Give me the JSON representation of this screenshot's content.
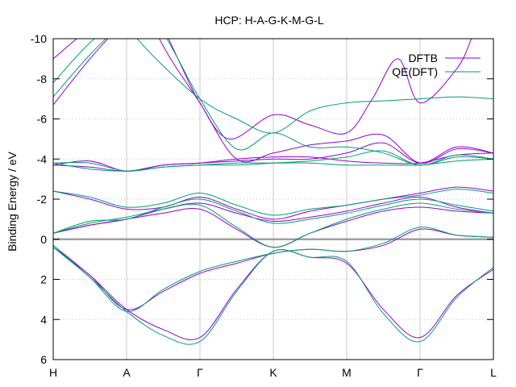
{
  "chart_data": {
    "type": "line",
    "title": "HCP: H-A-G-K-M-G-L",
    "xlabel": "",
    "ylabel": "Binding Energy / eV",
    "ylim": [
      6,
      -10
    ],
    "yticks": [
      "-10",
      "-8",
      "-6",
      "-4",
      "-2",
      "0",
      "2",
      "4",
      "6"
    ],
    "x_ticks": [
      "H",
      "A",
      "Γ",
      "K",
      "M",
      "Γ",
      "L"
    ],
    "grid": "dotted horizontal + vertical at high-symmetry points",
    "fermi_level": 0,
    "legend_position": "top-right",
    "colors": {
      "DFTB": "#9400d3",
      "QE(DFT)": "#009e73",
      "fermi": "#a0a0a0",
      "grid": "#c8c8c8"
    },
    "series": [
      {
        "name": "DFTB",
        "bands": [
          [
            [
              0,
              0.4
            ],
            [
              0.5,
              1.8
            ],
            [
              1,
              3.5
            ],
            [
              1.5,
              4.5
            ],
            [
              2,
              4.9
            ],
            [
              2.5,
              2.5
            ],
            [
              3,
              0.6
            ],
            [
              3.5,
              0.9
            ],
            [
              4,
              1.2
            ],
            [
              4.5,
              3.5
            ],
            [
              5,
              4.9
            ],
            [
              5.5,
              2.8
            ],
            [
              6,
              1.5
            ]
          ],
          [
            [
              0,
              0.3
            ],
            [
              0.5,
              1.8
            ],
            [
              1,
              3.5
            ],
            [
              1.5,
              2.6
            ],
            [
              2,
              1.7
            ],
            [
              2.5,
              1.2
            ],
            [
              3,
              0.7
            ],
            [
              3.5,
              0.5
            ],
            [
              4,
              0.6
            ],
            [
              4.5,
              0.3
            ],
            [
              5,
              -0.5
            ],
            [
              5.5,
              -0.2
            ],
            [
              6,
              -0.1
            ]
          ],
          [
            [
              0,
              -0.3
            ],
            [
              0.5,
              -0.7
            ],
            [
              1,
              -1.0
            ],
            [
              1.5,
              -1.3
            ],
            [
              2,
              -1.5
            ],
            [
              2.5,
              -0.5
            ],
            [
              3,
              0.4
            ],
            [
              3.5,
              -0.3
            ],
            [
              4,
              -0.9
            ],
            [
              4.5,
              -1.4
            ],
            [
              5,
              -1.6
            ],
            [
              5.5,
              -1.4
            ],
            [
              6,
              -1.3
            ]
          ],
          [
            [
              0,
              -0.3
            ],
            [
              0.5,
              -0.7
            ],
            [
              1,
              -1.0
            ],
            [
              1.5,
              -1.5
            ],
            [
              2,
              -1.8
            ],
            [
              2.5,
              -1.3
            ],
            [
              3,
              -0.9
            ],
            [
              3.5,
              -1.1
            ],
            [
              4,
              -1.4
            ],
            [
              4.5,
              -1.8
            ],
            [
              5,
              -2.1
            ],
            [
              5.5,
              -1.6
            ],
            [
              6,
              -1.3
            ]
          ],
          [
            [
              0,
              -2.4
            ],
            [
              0.5,
              -2.0
            ],
            [
              1,
              -1.5
            ],
            [
              1.5,
              -1.6
            ],
            [
              2,
              -2.1
            ],
            [
              2.5,
              -1.5
            ],
            [
              3,
              -1.0
            ],
            [
              3.5,
              -1.4
            ],
            [
              4,
              -1.7
            ],
            [
              4.5,
              -2.0
            ],
            [
              5,
              -2.3
            ],
            [
              5.5,
              -2.6
            ],
            [
              6,
              -2.4
            ]
          ],
          [
            [
              0,
              -3.7
            ],
            [
              0.5,
              -3.6
            ],
            [
              1,
              -3.4
            ],
            [
              1.5,
              -3.7
            ],
            [
              2,
              -3.8
            ],
            [
              2.5,
              -4.0
            ],
            [
              3,
              -4.1
            ],
            [
              3.5,
              -4.1
            ],
            [
              4,
              -3.9
            ],
            [
              4.5,
              -3.8
            ],
            [
              5,
              -3.8
            ],
            [
              5.5,
              -4.2
            ],
            [
              6,
              -4.3
            ]
          ],
          [
            [
              0,
              -3.7
            ],
            [
              0.5,
              -3.9
            ],
            [
              1,
              -3.4
            ],
            [
              1.5,
              -3.7
            ],
            [
              2,
              -3.8
            ],
            [
              2.5,
              -3.9
            ],
            [
              3,
              -4.0
            ],
            [
              3.5,
              -4.0
            ],
            [
              4,
              -4.3
            ],
            [
              4.5,
              -4.8
            ],
            [
              5,
              -3.8
            ],
            [
              5.5,
              -4.6
            ],
            [
              6,
              -4.3
            ]
          ],
          [
            [
              0,
              -6.7
            ],
            [
              0.5,
              -9.0
            ],
            [
              1,
              -11.0
            ]
          ],
          [
            [
              0,
              -9.0
            ],
            [
              0.5,
              -10.5
            ],
            [
              1,
              -11.5
            ]
          ],
          [
            [
              1.45,
              -11.0
            ],
            [
              1.7,
              -9.0
            ],
            [
              2,
              -6.8
            ],
            [
              2.4,
              -5.0
            ],
            [
              3,
              -6.2
            ],
            [
              3.5,
              -5.7
            ],
            [
              4,
              -5.3
            ],
            [
              4.35,
              -7.0
            ],
            [
              4.7,
              -9.0
            ],
            [
              5,
              -6.8
            ],
            [
              5.5,
              -8.5
            ],
            [
              5.7,
              -10.0
            ]
          ],
          [
            [
              1.3,
              -11.0
            ],
            [
              1.6,
              -9.0
            ],
            [
              2,
              -6.8
            ],
            [
              2.5,
              -4.0
            ],
            [
              3,
              -4.3
            ],
            [
              3.5,
              -4.7
            ],
            [
              4,
              -4.9
            ],
            [
              4.5,
              -5.2
            ],
            [
              5,
              -3.8
            ],
            [
              5.5,
              -4.5
            ],
            [
              6,
              -4.3
            ]
          ]
        ]
      },
      {
        "name": "QE(DFT)",
        "bands": [
          [
            [
              0,
              0.4
            ],
            [
              0.5,
              1.9
            ],
            [
              1,
              3.6
            ],
            [
              1.5,
              4.8
            ],
            [
              2,
              5.1
            ],
            [
              2.5,
              2.6
            ],
            [
              3,
              0.6
            ],
            [
              3.5,
              0.9
            ],
            [
              4,
              1.1
            ],
            [
              4.5,
              3.7
            ],
            [
              5,
              5.1
            ],
            [
              5.5,
              2.9
            ],
            [
              6,
              1.4
            ]
          ],
          [
            [
              0,
              0.3
            ],
            [
              0.5,
              1.9
            ],
            [
              1,
              3.6
            ],
            [
              1.5,
              2.5
            ],
            [
              2,
              1.6
            ],
            [
              2.5,
              1.1
            ],
            [
              3,
              0.7
            ],
            [
              3.5,
              0.5
            ],
            [
              4,
              0.6
            ],
            [
              4.5,
              0.2
            ],
            [
              5,
              -0.6
            ],
            [
              5.5,
              -0.2
            ],
            [
              6,
              -0.1
            ]
          ],
          [
            [
              0,
              -0.3
            ],
            [
              0.5,
              -0.8
            ],
            [
              1,
              -1.1
            ],
            [
              1.5,
              -1.5
            ],
            [
              2,
              -1.7
            ],
            [
              2.5,
              -0.6
            ],
            [
              3,
              0.4
            ],
            [
              3.5,
              -0.3
            ],
            [
              4,
              -1.0
            ],
            [
              4.5,
              -1.5
            ],
            [
              5,
              -1.8
            ],
            [
              5.5,
              -1.5
            ],
            [
              6,
              -1.3
            ]
          ],
          [
            [
              0,
              -0.3
            ],
            [
              0.5,
              -0.9
            ],
            [
              1,
              -1.0
            ],
            [
              1.5,
              -1.6
            ],
            [
              2,
              -2.0
            ],
            [
              2.5,
              -1.4
            ],
            [
              3,
              -0.8
            ],
            [
              3.5,
              -1.0
            ],
            [
              4,
              -1.3
            ],
            [
              4.5,
              -1.7
            ],
            [
              5,
              -2.0
            ],
            [
              5.5,
              -1.7
            ],
            [
              6,
              -1.4
            ]
          ],
          [
            [
              0,
              -2.4
            ],
            [
              0.5,
              -2.1
            ],
            [
              1,
              -1.6
            ],
            [
              1.5,
              -1.8
            ],
            [
              2,
              -2.3
            ],
            [
              2.5,
              -1.7
            ],
            [
              3,
              -1.2
            ],
            [
              3.5,
              -1.5
            ],
            [
              4,
              -1.7
            ],
            [
              4.5,
              -2.0
            ],
            [
              5,
              -2.2
            ],
            [
              5.5,
              -2.5
            ],
            [
              6,
              -2.3
            ]
          ],
          [
            [
              0,
              -3.8
            ],
            [
              0.5,
              -3.5
            ],
            [
              1,
              -3.4
            ],
            [
              1.5,
              -3.6
            ],
            [
              2,
              -3.7
            ],
            [
              2.5,
              -3.8
            ],
            [
              3,
              -3.8
            ],
            [
              3.5,
              -3.8
            ],
            [
              4,
              -3.7
            ],
            [
              4.5,
              -3.7
            ],
            [
              5,
              -3.7
            ],
            [
              5.5,
              -3.9
            ],
            [
              6,
              -4.0
            ]
          ],
          [
            [
              0,
              -3.8
            ],
            [
              0.5,
              -3.8
            ],
            [
              1,
              -3.4
            ],
            [
              1.5,
              -3.6
            ],
            [
              2,
              -3.7
            ],
            [
              2.5,
              -3.7
            ],
            [
              3,
              -3.8
            ],
            [
              3.5,
              -3.9
            ],
            [
              4,
              -4.1
            ],
            [
              4.5,
              -4.4
            ],
            [
              5,
              -3.7
            ],
            [
              5.5,
              -4.2
            ],
            [
              6,
              -4.0
            ]
          ],
          [
            [
              0,
              -7.1
            ],
            [
              0.5,
              -9.2
            ],
            [
              1,
              -11.0
            ]
          ],
          [
            [
              0,
              -7.8
            ],
            [
              0.5,
              -9.8
            ],
            [
              1,
              -11.2
            ]
          ],
          [
            [
              0.9,
              -11.0
            ],
            [
              1.4,
              -9.0
            ],
            [
              2,
              -7.0
            ],
            [
              2.5,
              -6.0
            ],
            [
              3,
              -5.3
            ],
            [
              3.5,
              -6.4
            ],
            [
              4,
              -6.8
            ],
            [
              4.5,
              -6.9
            ],
            [
              5,
              -7.0
            ],
            [
              5.5,
              -7.1
            ],
            [
              6,
              -7.0
            ]
          ],
          [
            [
              1.4,
              -11.0
            ],
            [
              1.7,
              -9.0
            ],
            [
              2,
              -7.0
            ],
            [
              2.5,
              -4.5
            ],
            [
              3,
              -5.3
            ],
            [
              3.5,
              -4.6
            ],
            [
              4,
              -4.6
            ],
            [
              4.5,
              -4.3
            ],
            [
              5,
              -3.7
            ],
            [
              5.5,
              -4.1
            ],
            [
              6,
              -4.0
            ]
          ]
        ]
      }
    ]
  }
}
